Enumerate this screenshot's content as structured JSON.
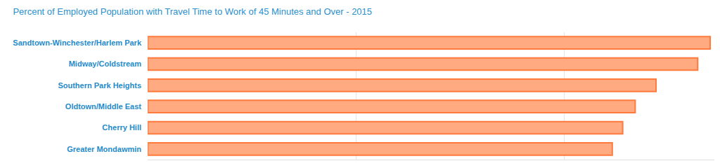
{
  "chart_data": {
    "type": "bar",
    "title": "Percent of Employed Population with Travel Time to Work of 45 Minutes and Over - 2015",
    "categories": [
      "Sandtown-Winchester/Harlem Park",
      "Midway/Coldstream",
      "Southern Park Heights",
      "Oldtown/Middle East",
      "Cherry Hill",
      "Greater Mondawmin"
    ],
    "values": [
      27.0,
      26.4,
      24.4,
      23.4,
      22.8,
      22.3
    ],
    "color": "#ffaa80",
    "orientation": "horizontal",
    "xlim": [
      0,
      27.2
    ],
    "xticks": [
      0,
      10,
      20
    ],
    "grid": true,
    "tick_labels": "y"
  }
}
